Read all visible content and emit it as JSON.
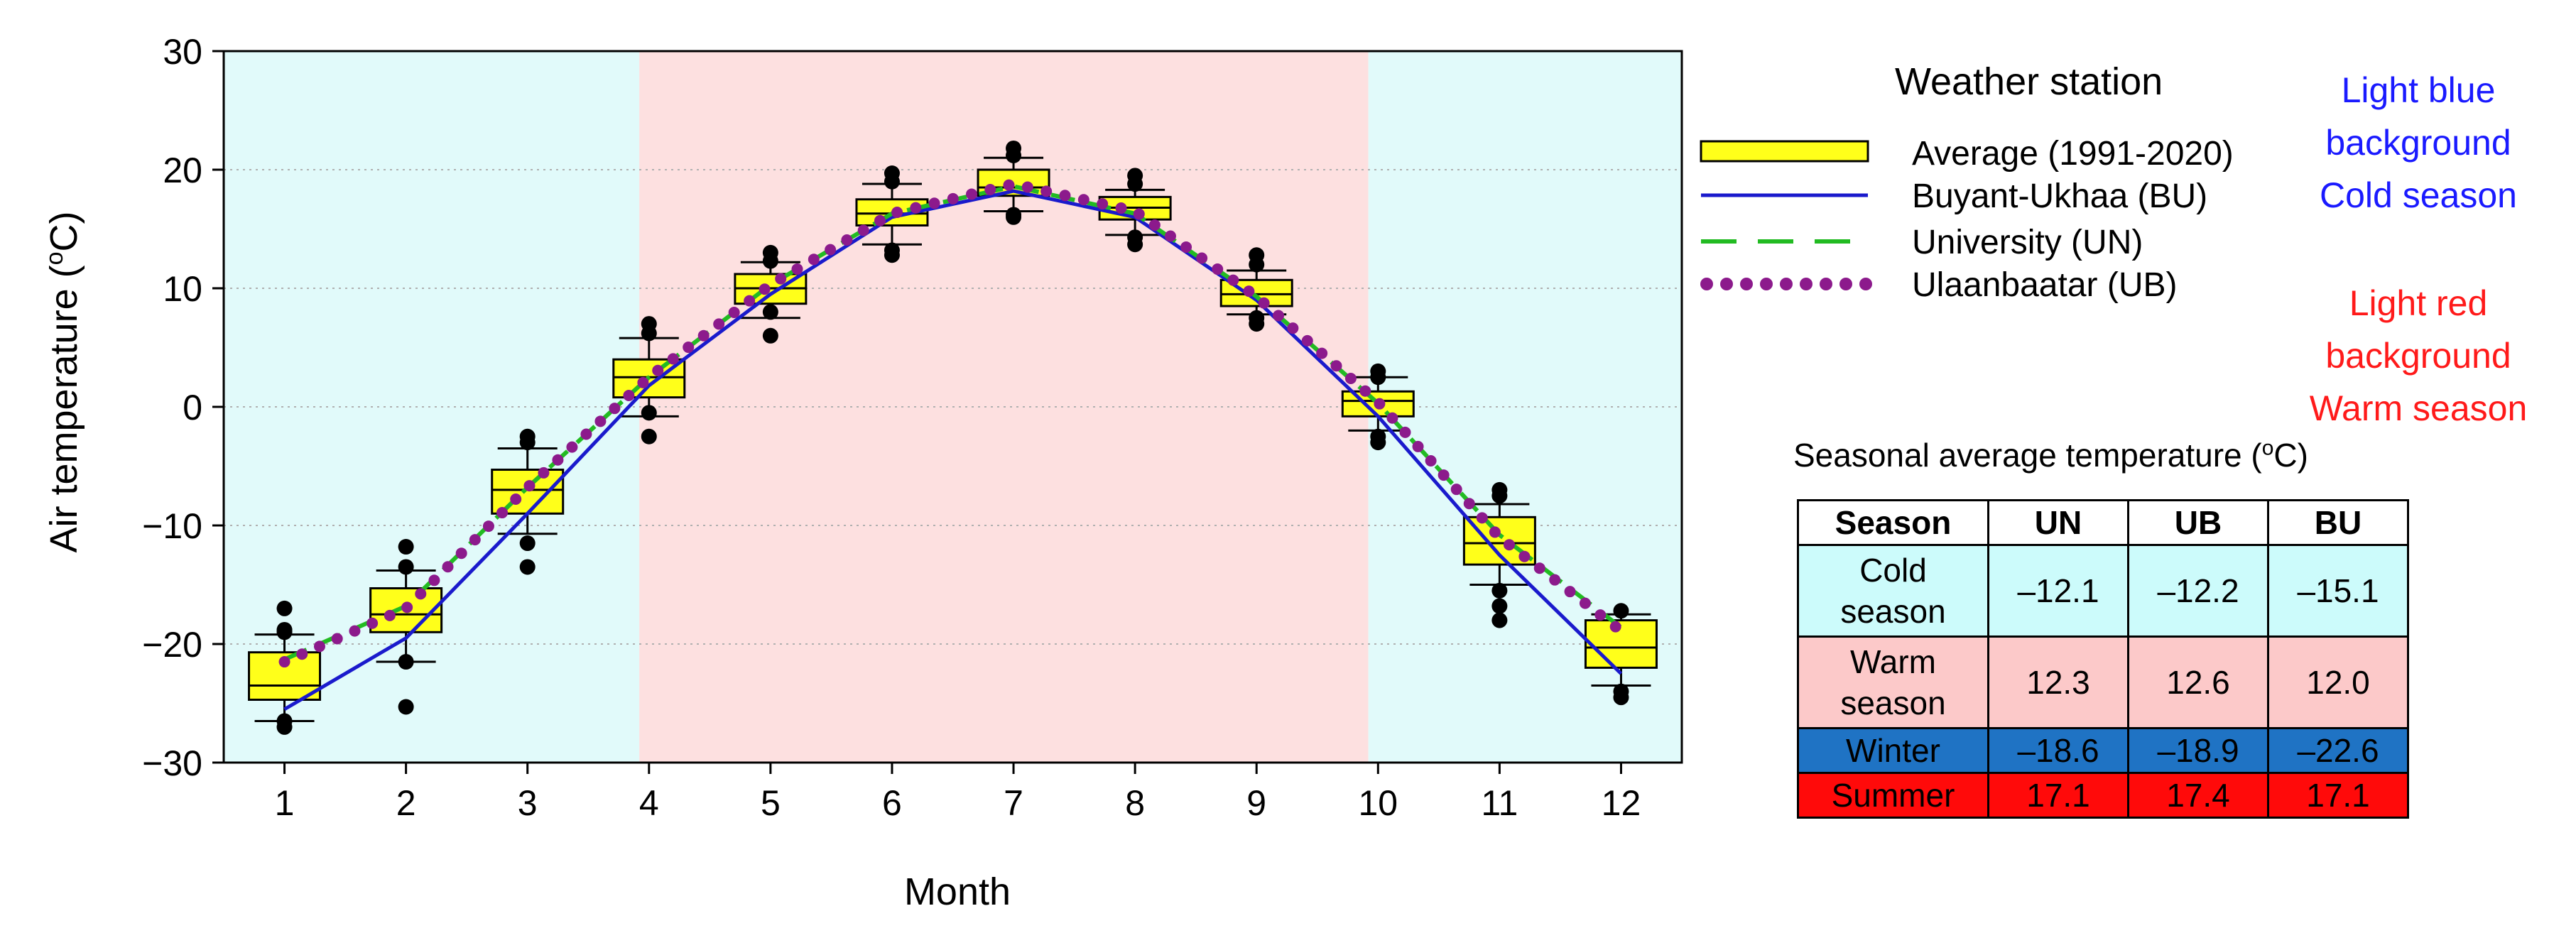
{
  "chart_data": {
    "type": "boxplot+line",
    "xlabel": "Month",
    "ylabel": "Air temperature (",
    "ylabel_sup": "o",
    "ylabel_end": "C)",
    "ylim": [
      -30,
      30
    ],
    "yticks": [
      "30",
      "20",
      "10",
      "0",
      "−10",
      "−20",
      "−30"
    ],
    "ytick_values": [
      30,
      20,
      10,
      0,
      -10,
      -20,
      -30
    ],
    "xlim": [
      0.5,
      12.5
    ],
    "categories": [
      "1",
      "2",
      "3",
      "4",
      "5",
      "6",
      "7",
      "8",
      "9",
      "10",
      "11",
      "12"
    ],
    "shading": [
      {
        "from": 0.5,
        "to": 3.92,
        "color": "#e1fafa",
        "season": "cold"
      },
      {
        "from": 3.92,
        "to": 9.92,
        "color": "#fde0e0",
        "season": "warm"
      },
      {
        "from": 9.92,
        "to": 12.5,
        "color": "#e1fafa",
        "season": "cold"
      }
    ],
    "boxes": [
      {
        "month": 1,
        "q1": -24.7,
        "median": -23.5,
        "q3": -20.7,
        "whisker_low": -26.5,
        "whisker_high": -19.2,
        "outliers": [
          -17.0,
          -18.8,
          -19.0,
          -26.5,
          -27.0
        ]
      },
      {
        "month": 2,
        "q1": -19.0,
        "median": -17.5,
        "q3": -15.3,
        "whisker_low": -21.5,
        "whisker_high": -13.8,
        "outliers": [
          -11.8,
          -13.5,
          -21.5,
          -25.3
        ]
      },
      {
        "month": 3,
        "q1": -9.0,
        "median": -7.0,
        "q3": -5.3,
        "whisker_low": -10.7,
        "whisker_high": -3.5,
        "outliers": [
          -2.5,
          -3.0,
          -11.5,
          -13.5
        ]
      },
      {
        "month": 4,
        "q1": 0.8,
        "median": 2.5,
        "q3": 4.0,
        "whisker_low": -0.8,
        "whisker_high": 5.8,
        "outliers": [
          6.2,
          7.0,
          -0.5,
          -2.5
        ]
      },
      {
        "month": 5,
        "q1": 8.7,
        "median": 10.0,
        "q3": 11.2,
        "whisker_low": 7.5,
        "whisker_high": 12.2,
        "outliers": [
          13.0,
          12.3,
          8.0,
          6.0
        ]
      },
      {
        "month": 6,
        "q1": 15.3,
        "median": 16.3,
        "q3": 17.5,
        "whisker_low": 13.7,
        "whisker_high": 18.8,
        "outliers": [
          19.7,
          19.0,
          13.2,
          12.8
        ]
      },
      {
        "month": 7,
        "q1": 17.8,
        "median": 18.5,
        "q3": 20.0,
        "whisker_low": 16.5,
        "whisker_high": 21.0,
        "outliers": [
          21.8,
          21.2,
          16.2,
          16.0
        ]
      },
      {
        "month": 8,
        "q1": 15.8,
        "median": 16.8,
        "q3": 17.7,
        "whisker_low": 14.5,
        "whisker_high": 18.3,
        "outliers": [
          19.5,
          18.8,
          14.3,
          13.7
        ]
      },
      {
        "month": 9,
        "q1": 8.5,
        "median": 9.5,
        "q3": 10.7,
        "whisker_low": 7.8,
        "whisker_high": 11.5,
        "outliers": [
          12.8,
          12.0,
          7.5,
          7.0
        ]
      },
      {
        "month": 10,
        "q1": -0.8,
        "median": 0.5,
        "q3": 1.3,
        "whisker_low": -2.0,
        "whisker_high": 2.5,
        "outliers": [
          3.0,
          2.5,
          -2.5,
          -3.0
        ]
      },
      {
        "month": 11,
        "q1": -13.3,
        "median": -11.5,
        "q3": -9.3,
        "whisker_low": -15.0,
        "whisker_high": -8.2,
        "outliers": [
          -7.0,
          -7.5,
          -15.5,
          -16.8,
          -18.0
        ]
      },
      {
        "month": 12,
        "q1": -22.0,
        "median": -20.3,
        "q3": -18.0,
        "whisker_low": -23.5,
        "whisker_high": -17.5,
        "outliers": [
          -17.2,
          -24.0,
          -24.5
        ]
      }
    ],
    "series": [
      {
        "name": "Buyant-Ukhaa (BU)",
        "style": "solid",
        "color": "#1a1acc",
        "values": [
          -25.5,
          -19.5,
          -9.0,
          1.8,
          9.5,
          16.0,
          18.2,
          16.0,
          9.0,
          -0.8,
          -12.5,
          -22.5
        ]
      },
      {
        "name": "University (UN)",
        "style": "dashed",
        "color": "#22bb22",
        "values": [
          -21.3,
          -16.8,
          -6.8,
          2.5,
          10.3,
          16.3,
          18.6,
          16.3,
          9.3,
          0.3,
          -10.8,
          -18.6
        ]
      },
      {
        "name": "Ulaanbaatar (UB)",
        "style": "dotted",
        "color": "#8c1a8c",
        "values": [
          -21.5,
          -17.0,
          -6.8,
          2.5,
          10.3,
          16.3,
          18.8,
          16.5,
          9.3,
          0.4,
          -11.0,
          -18.9
        ]
      }
    ],
    "box_series_name": "Average (1991-2020)",
    "box_color": "#ffff1a",
    "legend_title": "Weather station",
    "legend": [
      "Average (1991-2020)",
      "Buyant-Ukhaa (BU)",
      "University (UN)",
      "Ulaanbaatar (UB)"
    ]
  },
  "notes": {
    "cold": [
      "Light blue",
      "background",
      "Cold season"
    ],
    "warm": [
      "Light red",
      "background",
      "Warm season"
    ]
  },
  "table": {
    "title_pre": "Seasonal average temperature (",
    "title_sup": "o",
    "title_post": "C)",
    "headers": [
      "Season",
      "UN",
      "UB",
      "BU"
    ],
    "rows": [
      {
        "season_line1": "Cold",
        "season_line2": "season",
        "un": "–12.1",
        "ub": "–12.2",
        "bu": "–15.1"
      },
      {
        "season_line1": "Warm",
        "season_line2": "season",
        "un": "12.3",
        "ub": "12.6",
        "bu": "12.0"
      },
      {
        "season": "Winter",
        "un": "–18.6",
        "ub": "–18.9",
        "bu": "–22.6"
      },
      {
        "season": "Summer",
        "un": "17.1",
        "ub": "17.4",
        "bu": "17.1"
      }
    ]
  }
}
